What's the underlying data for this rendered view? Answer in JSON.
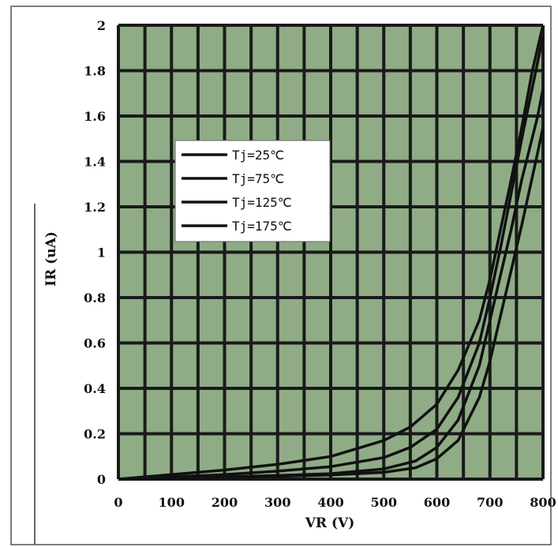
{
  "chart_data": {
    "type": "line",
    "title": "",
    "xlabel": "VR (V)",
    "ylabel": "IR (uA)",
    "xlim": [
      0,
      800
    ],
    "ylim": [
      0,
      2
    ],
    "x_ticks": [
      "0",
      "100",
      "200",
      "300",
      "400",
      "500",
      "600",
      "700",
      "800"
    ],
    "y_ticks": [
      "0",
      "0.2",
      "0.4",
      "0.6",
      "0.8",
      "1",
      "1.2",
      "1.4",
      "1.6",
      "1.8",
      "2"
    ],
    "grid": true,
    "legend_position": "top-center",
    "colors": {
      "plot_background": "#8fac86",
      "grid_line": "#1a1a1a",
      "series_line": "#111111",
      "frame": "#555555"
    },
    "series": [
      {
        "name": "Tj=25℃",
        "x": [
          0,
          100,
          200,
          300,
          400,
          500,
          560,
          600,
          640,
          680,
          700,
          720,
          740,
          760,
          790,
          800
        ],
        "y": [
          0.0,
          0.004,
          0.008,
          0.012,
          0.018,
          0.03,
          0.05,
          0.09,
          0.17,
          0.36,
          0.52,
          0.72,
          0.92,
          1.12,
          1.44,
          1.55
        ]
      },
      {
        "name": "Tj=75℃",
        "x": [
          0,
          100,
          200,
          300,
          400,
          500,
          560,
          600,
          640,
          680,
          700,
          720,
          740,
          760,
          790,
          800
        ],
        "y": [
          0.0,
          0.005,
          0.01,
          0.016,
          0.024,
          0.045,
          0.08,
          0.14,
          0.26,
          0.5,
          0.7,
          0.9,
          1.1,
          1.32,
          1.6,
          1.72
        ]
      },
      {
        "name": "Tj=125℃",
        "x": [
          0,
          100,
          200,
          300,
          400,
          500,
          550,
          600,
          640,
          680,
          700,
          720,
          740,
          760,
          790,
          800
        ],
        "y": [
          0.0,
          0.01,
          0.02,
          0.035,
          0.055,
          0.095,
          0.14,
          0.22,
          0.36,
          0.6,
          0.8,
          1.02,
          1.26,
          1.5,
          1.84,
          1.95
        ]
      },
      {
        "name": "Tj=175℃",
        "x": [
          0,
          100,
          200,
          300,
          400,
          500,
          550,
          600,
          640,
          680,
          700,
          720,
          740,
          760,
          780,
          800
        ],
        "y": [
          0.0,
          0.02,
          0.04,
          0.065,
          0.1,
          0.17,
          0.23,
          0.33,
          0.48,
          0.7,
          0.88,
          1.1,
          1.32,
          1.55,
          1.8,
          2.0
        ]
      }
    ]
  }
}
